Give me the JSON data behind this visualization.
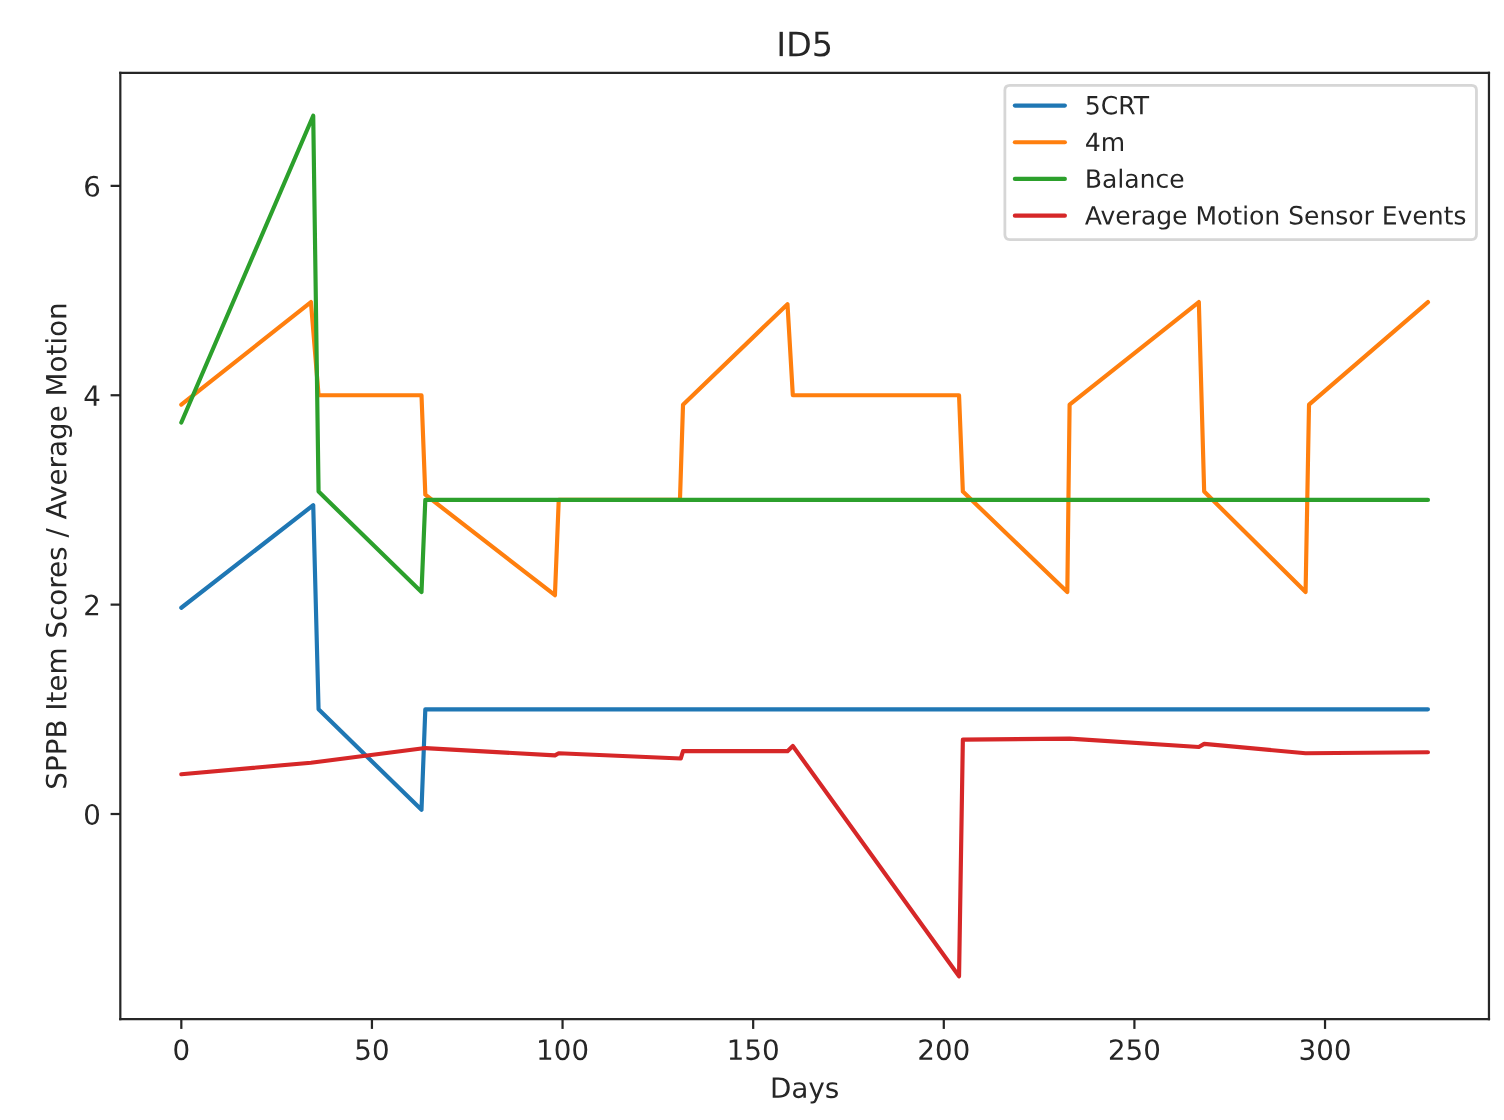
{
  "chart_data": {
    "type": "line",
    "title": "ID5",
    "xlabel": "Days",
    "ylabel": "SPPB Item Scores / Average Motion",
    "xlim": [
      -16,
      343
    ],
    "xticks": [
      0,
      50,
      100,
      150,
      200,
      250,
      300
    ],
    "ylim": [
      -1.96,
      7.08
    ],
    "yticks": [
      0,
      2,
      4,
      6
    ],
    "grid": false,
    "legend": "top right",
    "series": [
      {
        "name": "5CRT",
        "color": "#1f77b4",
        "x": [
          0,
          34.6,
          36,
          63,
          64,
          327
        ],
        "values": [
          1.97,
          2.95,
          1.0,
          0.04,
          1.0,
          1.0
        ]
      },
      {
        "name": "4m",
        "color": "#ff7f0e",
        "x": [
          0,
          34,
          36,
          63,
          64,
          98,
          99,
          130.8,
          131.6,
          159,
          160.4,
          204,
          205,
          232.4,
          233,
          266.9,
          268.3,
          294.9,
          295.8,
          327
        ],
        "values": [
          3.91,
          4.89,
          4.0,
          4.0,
          3.05,
          2.09,
          3.0,
          3.0,
          3.91,
          4.87,
          4.0,
          4.0,
          3.08,
          2.12,
          3.91,
          4.89,
          3.08,
          2.12,
          3.91,
          4.89
        ]
      },
      {
        "name": "Balance",
        "color": "#2ca02c",
        "x": [
          0,
          34.6,
          36,
          63,
          64,
          327
        ],
        "values": [
          3.74,
          6.67,
          3.08,
          2.12,
          3.0,
          3.0
        ]
      },
      {
        "name": "Average Motion Sensor Events",
        "color": "#d62728",
        "x": [
          0,
          34,
          64,
          98,
          99,
          131,
          131.6,
          159,
          160.4,
          204,
          205,
          233,
          266.9,
          268.3,
          294.9,
          327
        ],
        "values": [
          0.38,
          0.49,
          0.63,
          0.56,
          0.58,
          0.53,
          0.6,
          0.6,
          0.65,
          -1.55,
          0.71,
          0.72,
          0.64,
          0.67,
          0.58,
          0.59
        ]
      }
    ]
  }
}
